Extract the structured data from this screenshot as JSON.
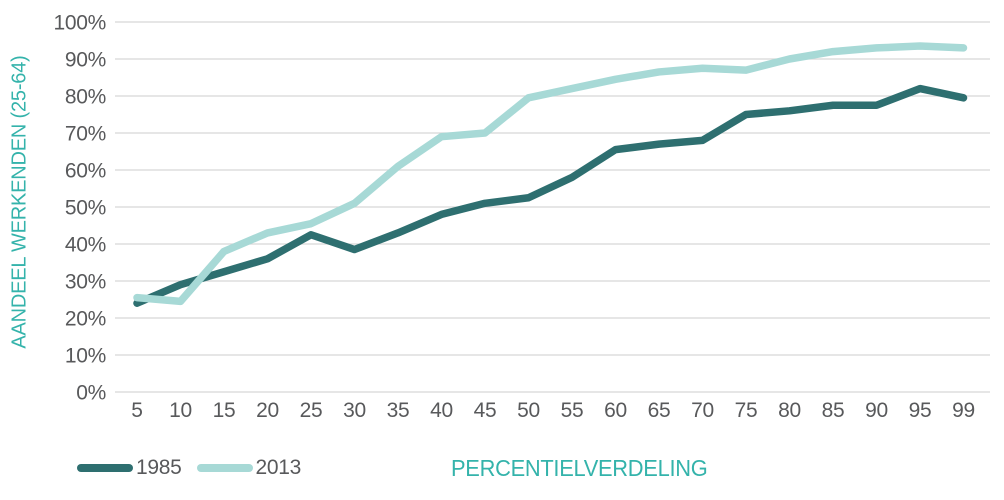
{
  "chart_data": {
    "type": "line",
    "title": "",
    "xlabel": "PERCENTIELVERDELING",
    "ylabel": "AANDEEL WERKENDEN (25-64)",
    "categories": [
      "5",
      "10",
      "15",
      "20",
      "25",
      "30",
      "35",
      "40",
      "45",
      "50",
      "55",
      "60",
      "65",
      "70",
      "75",
      "80",
      "85",
      "90",
      "95",
      "99"
    ],
    "series": [
      {
        "name": "1985",
        "color": "#2e6f70",
        "values": [
          24,
          29,
          32.5,
          36,
          42.5,
          38.5,
          43,
          48,
          51,
          52.5,
          58,
          65.5,
          67,
          68,
          75,
          76,
          77.5,
          77.5,
          82,
          79.5
        ]
      },
      {
        "name": "2013",
        "color": "#a7d9d6",
        "values": [
          25.5,
          24.5,
          38,
          43,
          45.5,
          51,
          61,
          69,
          70,
          79.5,
          82,
          84.5,
          86.5,
          87.5,
          87,
          90,
          92,
          93,
          93.5,
          93
        ]
      }
    ],
    "y_ticks": [
      "0%",
      "10%",
      "20%",
      "30%",
      "40%",
      "50%",
      "60%",
      "70%",
      "80%",
      "90%",
      "100%"
    ],
    "ylim": [
      0,
      100
    ],
    "grid": "horizontal",
    "legend_position": "bottom-left",
    "colors": {
      "axis_text": "#58595b",
      "teal_text": "#34b3ab",
      "gridline": "#d6d6d6"
    }
  }
}
